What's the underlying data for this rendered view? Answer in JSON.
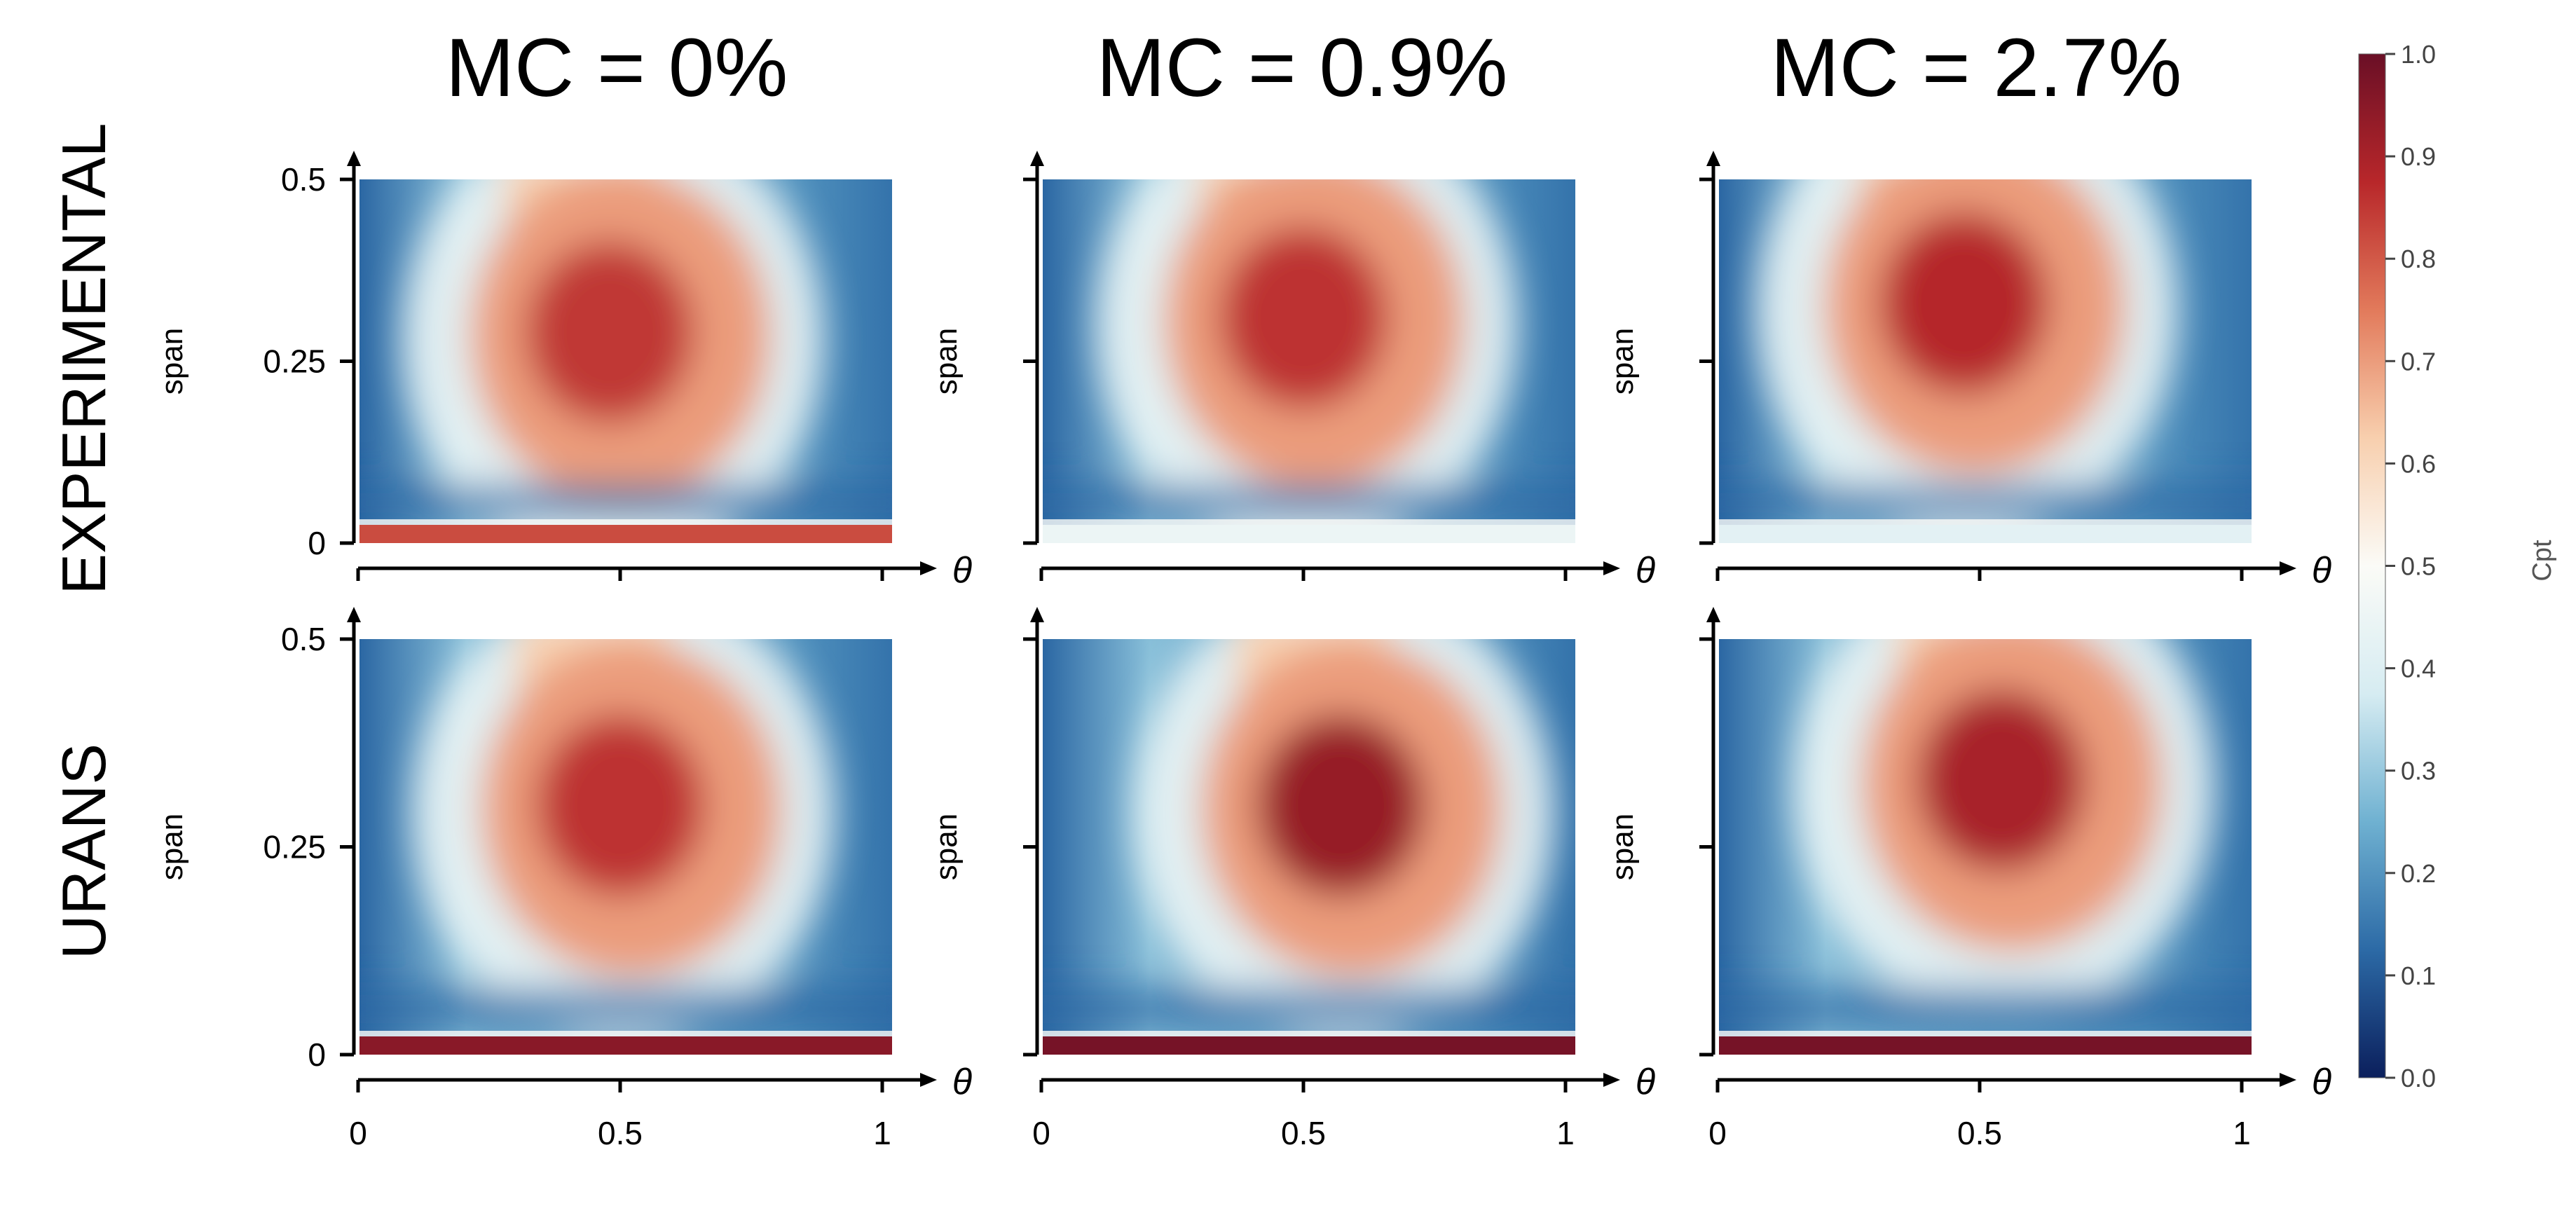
{
  "chart_data": {
    "type": "heatmap",
    "title": "",
    "column_titles": [
      "MC = 0%",
      "MC = 0.9%",
      "MC = 2.7%"
    ],
    "row_titles": [
      "EXPERIMENTAL",
      "URANS"
    ],
    "xlabel": "θ",
    "ylabel": "span",
    "x_ticks": [
      0,
      0.5,
      1
    ],
    "x_tick_labels": [
      "0",
      "0.5",
      "1"
    ],
    "y_ticks": [
      0,
      0.25,
      0.5
    ],
    "y_tick_labels": [
      "0",
      "0.25",
      "0.5"
    ],
    "xlim": [
      0,
      1
    ],
    "ylim": [
      0,
      0.5
    ],
    "colorbar": {
      "label": "Cpt",
      "range": [
        0.0,
        1.0
      ],
      "ticks": [
        0.0,
        0.1,
        0.2,
        0.3,
        0.4,
        0.5,
        0.6,
        0.7,
        0.8,
        0.9,
        1.0
      ],
      "tick_labels": [
        "0.0",
        "0.1",
        "0.2",
        "0.3",
        "0.4",
        "0.5",
        "0.6",
        "0.7",
        "0.8",
        "0.9",
        "1.0"
      ],
      "colormap": "RdBu_r",
      "stops": [
        "#0b1f5c",
        "#2c6aa6",
        "#6fb1d1",
        "#d6ecf2",
        "#fbfbf7",
        "#f8cfae",
        "#e27a5b",
        "#b8272a",
        "#6a0f26"
      ]
    },
    "panels": [
      {
        "row": "EXPERIMENTAL",
        "column": "MC = 0%",
        "core_theta": 0.47,
        "core_span": 0.29,
        "peak_cpt": 0.85,
        "hub_band_cpt": 0.82
      },
      {
        "row": "EXPERIMENTAL",
        "column": "MC = 0.9%",
        "core_theta": 0.49,
        "core_span": 0.31,
        "peak_cpt": 0.86,
        "hub_band_cpt": 0.45
      },
      {
        "row": "EXPERIMENTAL",
        "column": "MC = 2.7%",
        "core_theta": 0.46,
        "core_span": 0.33,
        "peak_cpt": 0.88,
        "hub_band_cpt": 0.42
      },
      {
        "row": "URANS",
        "column": "MC = 0%",
        "core_theta": 0.49,
        "core_span": 0.3,
        "peak_cpt": 0.86,
        "hub_band_cpt": 0.95
      },
      {
        "row": "URANS",
        "column": "MC = 0.9%",
        "core_theta": 0.56,
        "core_span": 0.3,
        "peak_cpt": 0.93,
        "hub_band_cpt": 0.98
      },
      {
        "row": "URANS",
        "column": "MC = 2.7%",
        "core_theta": 0.53,
        "core_span": 0.33,
        "peak_cpt": 0.9,
        "hub_band_cpt": 0.98
      }
    ]
  }
}
